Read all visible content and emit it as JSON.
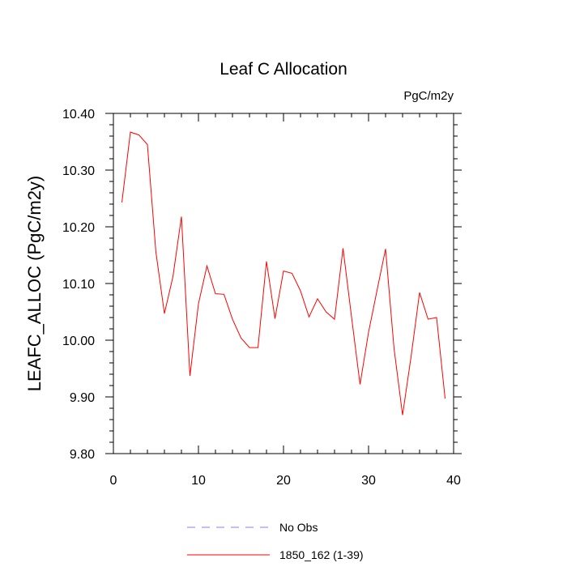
{
  "chart_data": {
    "type": "line",
    "title": "Leaf C Allocation",
    "units": "PgC/m2y",
    "ylabel": "LEAFC_ALLOC  (PgC/m2y)",
    "xlabel": "",
    "xlim": [
      0,
      40
    ],
    "ylim": [
      9.8,
      10.4
    ],
    "xticks": [
      "0",
      "10",
      "20",
      "30",
      "40"
    ],
    "yticks": [
      "9.80",
      "9.90",
      "10.00",
      "10.10",
      "10.20",
      "10.30",
      "10.40"
    ],
    "grid": false,
    "legend_position": "bottom",
    "series": [
      {
        "name": "1850_162 (1-39)",
        "color": "#ff0000",
        "style": "solid",
        "x": [
          1,
          2,
          3,
          4,
          5,
          6,
          7,
          8,
          9,
          10,
          11,
          12,
          13,
          14,
          15,
          16,
          17,
          18,
          19,
          20,
          21,
          22,
          23,
          24,
          25,
          26,
          27,
          28,
          29,
          30,
          31,
          32,
          33,
          34,
          35,
          36,
          37,
          38,
          39
        ],
        "y": [
          10.243,
          10.367,
          10.362,
          10.345,
          10.155,
          10.047,
          10.112,
          10.218,
          9.937,
          10.064,
          10.131,
          10.082,
          10.081,
          10.037,
          10.004,
          9.987,
          9.987,
          10.139,
          10.038,
          10.122,
          10.118,
          10.087,
          10.041,
          10.073,
          10.05,
          10.037,
          10.162,
          10.041,
          9.922,
          10.014,
          10.088,
          10.161,
          9.985,
          9.868,
          9.971,
          10.084,
          10.037,
          10.04,
          9.897
        ]
      }
    ],
    "legend": [
      {
        "label": "No Obs",
        "color": "#8080ff",
        "style": "dashed"
      },
      {
        "label": "1850_162 (1-39)",
        "color": "#ff0000",
        "style": "solid"
      }
    ]
  }
}
